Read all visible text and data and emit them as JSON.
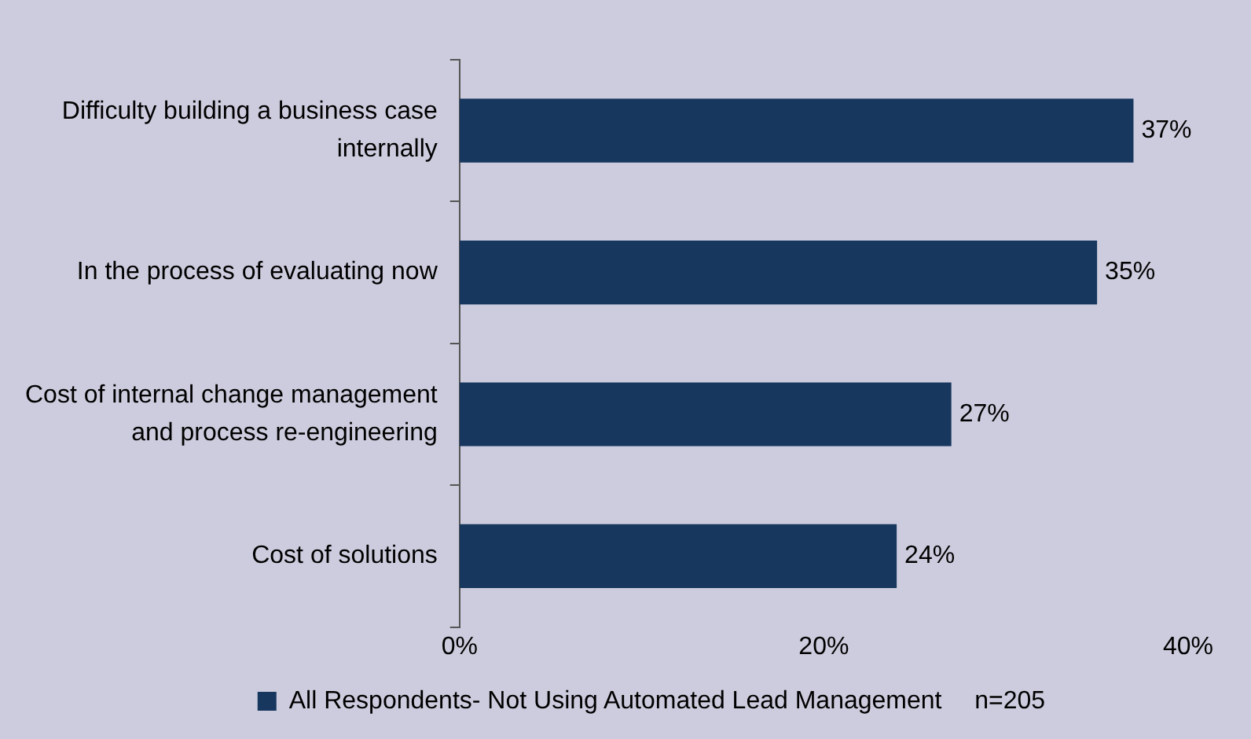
{
  "chart_data": {
    "type": "bar",
    "orientation": "horizontal",
    "categories": [
      "Difficulty building a business case internally",
      "In the process of evaluating now",
      "Cost of internal change management and process re-engineering",
      "Cost of solutions"
    ],
    "series": [
      {
        "name": "All Respondents- Not Using Automated Lead Management",
        "color": "#17375e",
        "values": [
          37,
          35,
          27,
          24
        ],
        "value_labels": [
          "37%",
          "35%",
          "27%",
          "24%"
        ]
      }
    ],
    "xlim": [
      0,
      40
    ],
    "xticks": [
      {
        "value": 0,
        "label": "0%"
      },
      {
        "value": 20,
        "label": "20%"
      },
      {
        "value": 40,
        "label": "40%"
      }
    ],
    "grid": false,
    "legend": "bottom",
    "annotations": [
      "n=205"
    ]
  }
}
